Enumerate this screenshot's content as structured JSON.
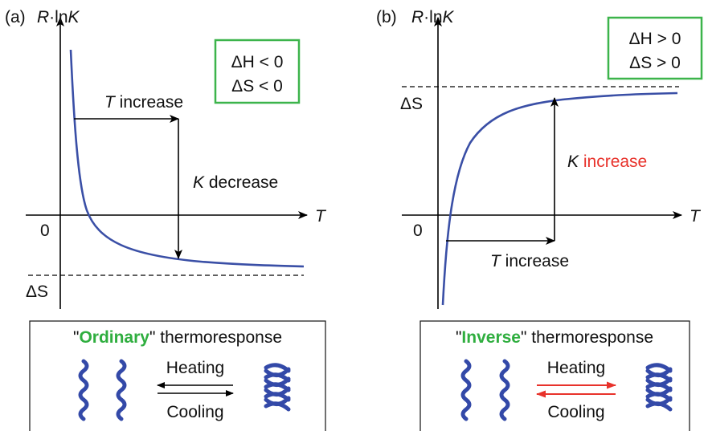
{
  "panels": [
    {
      "tag": "(a)",
      "y_axis": [
        "R",
        "·ln",
        "K"
      ],
      "x_axis": "T",
      "origin": "0",
      "conditions": [
        "ΔH < 0",
        "ΔS < 0"
      ],
      "asymptote": "ΔS",
      "t_change": [
        "T",
        " increase"
      ],
      "k_change": [
        "K",
        " decrease"
      ],
      "response": [
        "\"",
        "Ordinary",
        "\" thermoresponse"
      ],
      "heating": "Heating",
      "cooling": "Cooling"
    },
    {
      "tag": "(b)",
      "y_axis": [
        "R",
        "·ln",
        "K"
      ],
      "x_axis": "T",
      "origin": "0",
      "conditions": [
        "ΔH > 0",
        "ΔS > 0"
      ],
      "asymptote": "ΔS",
      "t_change": [
        "T",
        " increase"
      ],
      "k_change": [
        "K",
        " increase"
      ],
      "response": [
        "\"",
        "Inverse",
        "\" thermoresponse"
      ],
      "heating": "Heating",
      "cooling": "Cooling"
    }
  ]
}
